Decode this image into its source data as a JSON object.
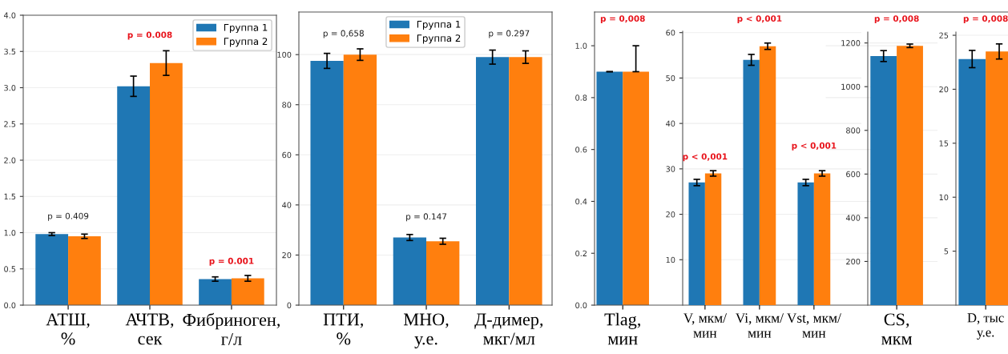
{
  "chart_data": [
    {
      "type": "bar",
      "categories": [
        "АТШ,\n%",
        "АЧТВ,\nсек",
        "Фибриноген,\nг/л"
      ],
      "series": [
        {
          "name": "Группа 1",
          "color": "#1f77b4",
          "values": [
            0.98,
            3.02,
            0.36
          ],
          "errors": [
            0.02,
            0.14,
            0.03
          ]
        },
        {
          "name": "Группа 2",
          "color": "#ff7f0e",
          "values": [
            0.95,
            3.34,
            0.37
          ],
          "errors": [
            0.03,
            0.17,
            0.04
          ]
        }
      ],
      "ylim": [
        0,
        4
      ],
      "yticks": [
        {
          "value": 0,
          "label": "0.0"
        },
        {
          "value": 0.5,
          "label": "0.5"
        },
        {
          "value": 1,
          "label": "1.0"
        },
        {
          "value": 1.5,
          "label": "1.5"
        },
        {
          "value": 2,
          "label": "2.0"
        },
        {
          "value": 2.5,
          "label": "2.5"
        },
        {
          "value": 3,
          "label": "3.0"
        },
        {
          "value": 3.5,
          "label": "3.5"
        },
        {
          "value": 4,
          "label": "4.0"
        }
      ],
      "grid": "y",
      "legend": "top right",
      "annotations": [
        "p = 0.409",
        "p = 0.008",
        "p = 0.001"
      ]
    },
    {
      "type": "bar",
      "categories": [
        "ПТИ,\n%",
        "МНО,\nу.е.",
        "Д-димер,\nмкг/мл"
      ],
      "series": [
        {
          "name": "Группа 1",
          "color": "#1f77b4",
          "values": [
            97.5,
            27,
            99
          ],
          "errors": [
            3,
            1.2,
            2.8
          ]
        },
        {
          "name": "Группа 2",
          "color": "#ff7f0e",
          "values": [
            100,
            25.5,
            99
          ],
          "errors": [
            2.3,
            1.2,
            2.5
          ]
        }
      ],
      "ylim": [
        0,
        117
      ],
      "yticks": [
        0,
        20,
        40,
        60,
        80,
        100
      ],
      "grid": "y",
      "legend": "top",
      "annotations": [
        "p = 0,658",
        "p = 0.147",
        "p = 0.297"
      ]
    },
    {
      "type": "bar",
      "title": "p = 0,008",
      "categories": [
        "Tlag,\nмин"
      ],
      "series": [
        {
          "color": "#1f77b4",
          "values": [
            0.9
          ],
          "errors": [
            0
          ]
        },
        {
          "color": "#ff7f0e",
          "values": [
            0.9
          ],
          "errors": [
            [
              0.9,
              1.0
            ]
          ]
        }
      ],
      "ylim": [
        0,
        1.13
      ],
      "yticks": [
        {
          "value": 0,
          "label": "0.0"
        },
        {
          "value": 0.2,
          "label": "0.2"
        },
        {
          "value": 0.4,
          "label": "0.4"
        },
        {
          "value": 0.6,
          "label": "0.6"
        },
        {
          "value": 0.8,
          "label": "0.8"
        },
        {
          "value": 1,
          "label": "1.0"
        }
      ],
      "grid": "y"
    },
    {
      "type": "bar",
      "title": "p < 0,001",
      "categories": [
        "V, мкм/\nмин",
        "Vi, мкм/\nмин",
        "Vst, мкм/\nмин"
      ],
      "series": [
        {
          "color": "#1f77b4",
          "values": [
            27,
            54,
            27
          ],
          "errors": [
            0.7,
            1.2,
            0.7
          ]
        },
        {
          "color": "#ff7f0e",
          "values": [
            29,
            57,
            29
          ],
          "errors": [
            0.6,
            0.7,
            0.6
          ]
        }
      ],
      "ylim": [
        0,
        60.3
      ],
      "yticks": [
        10,
        20,
        30,
        40,
        50,
        60
      ],
      "grid": "y",
      "annotations": [
        "p < 0,001",
        "p < 0,001"
      ]
    },
    {
      "type": "bar",
      "title": "p = 0,008",
      "categories": [
        "CS,\nмкм"
      ],
      "series": [
        {
          "color": "#1f77b4",
          "values": [
            1140
          ],
          "errors": [
            25
          ]
        },
        {
          "color": "#ff7f0e",
          "values": [
            1187
          ],
          "errors": [
            8
          ]
        }
      ],
      "ylim": [
        0,
        1250
      ],
      "yticks": [
        200,
        400,
        600,
        800,
        1000,
        1200
      ],
      "grid": "y"
    },
    {
      "type": "bar",
      "title": "p = 0,008",
      "categories": [
        "D, тыс\nу.е."
      ],
      "series": [
        {
          "color": "#1f77b4",
          "values": [
            22.8
          ],
          "errors": [
            0.8
          ]
        },
        {
          "color": "#ff7f0e",
          "values": [
            23.5
          ],
          "errors": [
            0.7
          ]
        }
      ],
      "ylim": [
        0,
        25.3
      ],
      "yticks": [
        5,
        10,
        15,
        20,
        25
      ],
      "grid": "y"
    }
  ]
}
